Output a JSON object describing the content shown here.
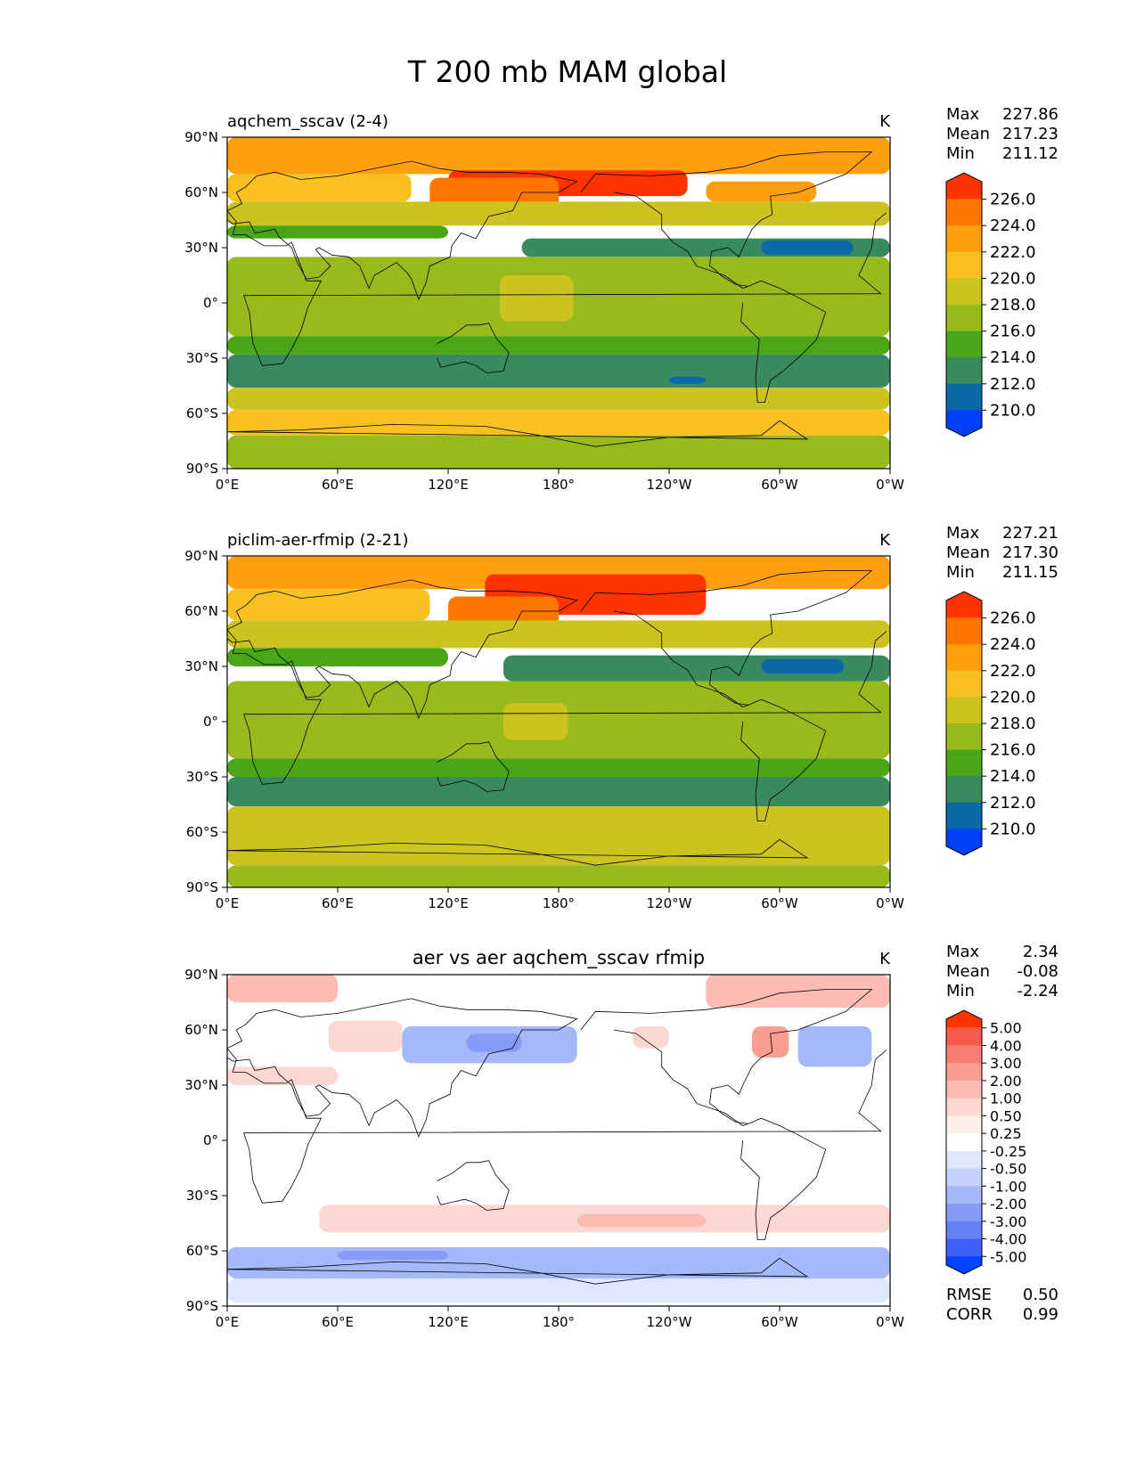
{
  "title": "T 200 mb MAM global",
  "axis": {
    "lat_ticks": [
      "90°N",
      "60°N",
      "30°N",
      "0°",
      "30°S",
      "60°S",
      "90°S"
    ],
    "lon_ticks": [
      "0°E",
      "60°E",
      "120°E",
      "180°",
      "120°W",
      "60°W",
      "0°W"
    ]
  },
  "chart_data": [
    {
      "type": "heatmap",
      "title": "aqchem_sscav (2-4)",
      "units": "K",
      "stats": [
        {
          "label": "Max",
          "value": "227.86"
        },
        {
          "label": "Mean",
          "value": "217.23"
        },
        {
          "label": "Min",
          "value": "211.12"
        }
      ],
      "colorbar": {
        "labels": [
          "226.0",
          "224.0",
          "222.0",
          "220.0",
          "218.0",
          "216.0",
          "214.0",
          "212.0",
          "210.0"
        ],
        "colors": [
          "#ff3300",
          "#ff7700",
          "#ff9f10",
          "#f8c020",
          "#cdc320",
          "#98ba1c",
          "#4aa616",
          "#3a8a60",
          "#0a6aa8",
          "#0040f8"
        ]
      },
      "zones": [
        {
          "lat": [
            90,
            70
          ],
          "lon": [
            0,
            360
          ],
          "level": 7
        },
        {
          "lat": [
            72,
            58
          ],
          "lon": [
            120,
            250
          ],
          "level": 9
        },
        {
          "lat": [
            68,
            50
          ],
          "lon": [
            110,
            180
          ],
          "level": 8
        },
        {
          "lat": [
            66,
            55
          ],
          "lon": [
            260,
            320
          ],
          "level": 7
        },
        {
          "lat": [
            70,
            55
          ],
          "lon": [
            0,
            100
          ],
          "level": 6
        },
        {
          "lat": [
            55,
            42
          ],
          "lon": [
            0,
            360
          ],
          "level": 5
        },
        {
          "lat": [
            42,
            35
          ],
          "lon": [
            0,
            120
          ],
          "level": 3
        },
        {
          "lat": [
            35,
            25
          ],
          "lon": [
            160,
            360
          ],
          "level": 2
        },
        {
          "lat": [
            34,
            26
          ],
          "lon": [
            290,
            340
          ],
          "level": 1
        },
        {
          "lat": [
            25,
            -18
          ],
          "lon": [
            0,
            360
          ],
          "level": 4
        },
        {
          "lat": [
            15,
            -10
          ],
          "lon": [
            148,
            188
          ],
          "level": 5
        },
        {
          "lat": [
            -18,
            -28
          ],
          "lon": [
            0,
            360
          ],
          "level": 3
        },
        {
          "lat": [
            -28,
            -46
          ],
          "lon": [
            0,
            360
          ],
          "level": 2
        },
        {
          "lat": [
            -40,
            -44
          ],
          "lon": [
            240,
            260
          ],
          "level": 1
        },
        {
          "lat": [
            -46,
            -58
          ],
          "lon": [
            0,
            360
          ],
          "level": 5
        },
        {
          "lat": [
            -58,
            -72
          ],
          "lon": [
            0,
            360
          ],
          "level": 6
        },
        {
          "lat": [
            -72,
            -90
          ],
          "lon": [
            0,
            360
          ],
          "level": 4
        }
      ]
    },
    {
      "type": "heatmap",
      "title": "piclim-aer-rfmip (2-21)",
      "units": "K",
      "stats": [
        {
          "label": "Max",
          "value": "227.21"
        },
        {
          "label": "Mean",
          "value": "217.30"
        },
        {
          "label": "Min",
          "value": "211.15"
        }
      ],
      "colorbar": {
        "labels": [
          "226.0",
          "224.0",
          "222.0",
          "220.0",
          "218.0",
          "216.0",
          "214.0",
          "212.0",
          "210.0"
        ],
        "colors": [
          "#ff3300",
          "#ff7700",
          "#ff9f10",
          "#f8c020",
          "#cdc320",
          "#98ba1c",
          "#4aa616",
          "#3a8a60",
          "#0a6aa8",
          "#0040f8"
        ]
      },
      "zones": [
        {
          "lat": [
            90,
            72
          ],
          "lon": [
            0,
            360
          ],
          "level": 7
        },
        {
          "lat": [
            80,
            58
          ],
          "lon": [
            140,
            260
          ],
          "level": 9
        },
        {
          "lat": [
            68,
            50
          ],
          "lon": [
            120,
            180
          ],
          "level": 8
        },
        {
          "lat": [
            72,
            55
          ],
          "lon": [
            0,
            110
          ],
          "level": 6
        },
        {
          "lat": [
            55,
            40
          ],
          "lon": [
            0,
            360
          ],
          "level": 5
        },
        {
          "lat": [
            40,
            30
          ],
          "lon": [
            0,
            120
          ],
          "level": 3
        },
        {
          "lat": [
            36,
            22
          ],
          "lon": [
            150,
            360
          ],
          "level": 2
        },
        {
          "lat": [
            34,
            26
          ],
          "lon": [
            290,
            335
          ],
          "level": 1
        },
        {
          "lat": [
            22,
            -20
          ],
          "lon": [
            0,
            360
          ],
          "level": 4
        },
        {
          "lat": [
            10,
            -10
          ],
          "lon": [
            150,
            185
          ],
          "level": 5
        },
        {
          "lat": [
            -20,
            -30
          ],
          "lon": [
            0,
            360
          ],
          "level": 3
        },
        {
          "lat": [
            -30,
            -46
          ],
          "lon": [
            0,
            360
          ],
          "level": 2
        },
        {
          "lat": [
            -46,
            -78
          ],
          "lon": [
            0,
            360
          ],
          "level": 5
        },
        {
          "lat": [
            -78,
            -90
          ],
          "lon": [
            0,
            360
          ],
          "level": 4
        }
      ]
    },
    {
      "type": "heatmap",
      "title": "aer vs aer aqchem_sscav rfmip",
      "units": "K",
      "stats": [
        {
          "label": "Max",
          "value": "2.34"
        },
        {
          "label": "Mean",
          "value": "-0.08"
        },
        {
          "label": "Min",
          "value": "-2.24"
        }
      ],
      "metrics": [
        {
          "label": "RMSE",
          "value": "0.50"
        },
        {
          "label": "CORR",
          "value": "0.99"
        }
      ],
      "colorbar": {
        "labels": [
          "5.00",
          "4.00",
          "3.00",
          "2.00",
          "1.00",
          "0.50",
          "0.25",
          "-0.25",
          "-0.50",
          "-1.00",
          "-2.00",
          "-3.00",
          "-4.00",
          "-5.00"
        ],
        "colors": [
          "#ff3300",
          "#f55a4a",
          "#f77d70",
          "#fa9e92",
          "#fcbcb4",
          "#fdd8d2",
          "#fff0ee",
          "#ffffff",
          "#e0e8ff",
          "#c4d2fc",
          "#a4b8fa",
          "#859cf7",
          "#6480f5",
          "#4060f8",
          "#0044ff"
        ]
      },
      "zones": [
        {
          "lat": [
            90,
            -90
          ],
          "lon": [
            0,
            360
          ],
          "level": 7
        },
        {
          "lat": [
            90,
            75
          ],
          "lon": [
            0,
            60
          ],
          "level": 10
        },
        {
          "lat": [
            90,
            72
          ],
          "lon": [
            260,
            360
          ],
          "level": 10
        },
        {
          "lat": [
            65,
            48
          ],
          "lon": [
            55,
            95
          ],
          "level": 9
        },
        {
          "lat": [
            62,
            42
          ],
          "lon": [
            95,
            190
          ],
          "level": 4
        },
        {
          "lat": [
            58,
            48
          ],
          "lon": [
            130,
            160
          ],
          "level": 3
        },
        {
          "lat": [
            62,
            50
          ],
          "lon": [
            220,
            240
          ],
          "level": 9
        },
        {
          "lat": [
            62,
            45
          ],
          "lon": [
            285,
            305
          ],
          "level": 11
        },
        {
          "lat": [
            62,
            40
          ],
          "lon": [
            310,
            350
          ],
          "level": 4
        },
        {
          "lat": [
            40,
            30
          ],
          "lon": [
            0,
            60
          ],
          "level": 9
        },
        {
          "lat": [
            -35,
            -50
          ],
          "lon": [
            50,
            360
          ],
          "level": 9
        },
        {
          "lat": [
            -40,
            -47
          ],
          "lon": [
            190,
            260
          ],
          "level": 10
        },
        {
          "lat": [
            -58,
            -75
          ],
          "lon": [
            0,
            360
          ],
          "level": 4
        },
        {
          "lat": [
            -60,
            -65
          ],
          "lon": [
            60,
            120
          ],
          "level": 3
        },
        {
          "lat": [
            -75,
            -88
          ],
          "lon": [
            0,
            360
          ],
          "level": 6
        }
      ]
    }
  ]
}
